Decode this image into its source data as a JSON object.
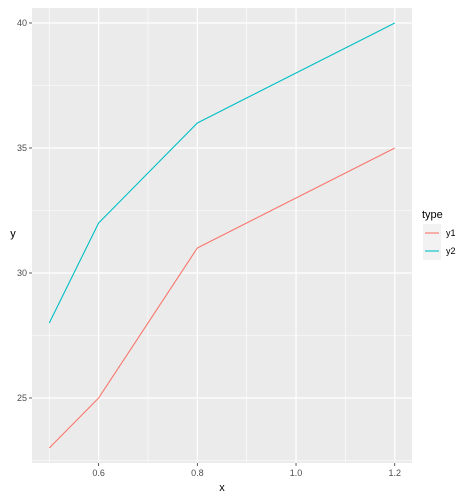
{
  "chart_data": {
    "type": "line",
    "title": "",
    "xlabel": "x",
    "ylabel": "y",
    "xlim": [
      0.465,
      1.235
    ],
    "ylim": [
      22.4,
      40.6
    ],
    "x_ticks": [
      0.6,
      0.8,
      1.0,
      1.2
    ],
    "x_tick_labels": [
      "0.6",
      "0.8",
      "1.0",
      "1.2"
    ],
    "y_ticks": [
      25,
      30,
      35,
      40
    ],
    "y_tick_labels": [
      "25",
      "30",
      "35",
      "40"
    ],
    "grid": true,
    "legend": {
      "title": "type",
      "position": "right"
    },
    "series": [
      {
        "name": "y1",
        "color": "#F8766D",
        "x": [
          0.5,
          0.6,
          0.8,
          1.2
        ],
        "values": [
          23,
          25,
          31,
          35
        ]
      },
      {
        "name": "y2",
        "color": "#00BFC4",
        "x": [
          0.5,
          0.6,
          0.8,
          1.2
        ],
        "values": [
          28,
          32,
          36,
          40
        ]
      }
    ]
  },
  "colors": {
    "panel": "#EBEBEB",
    "grid": "#FFFFFF",
    "tick": "#333333"
  }
}
